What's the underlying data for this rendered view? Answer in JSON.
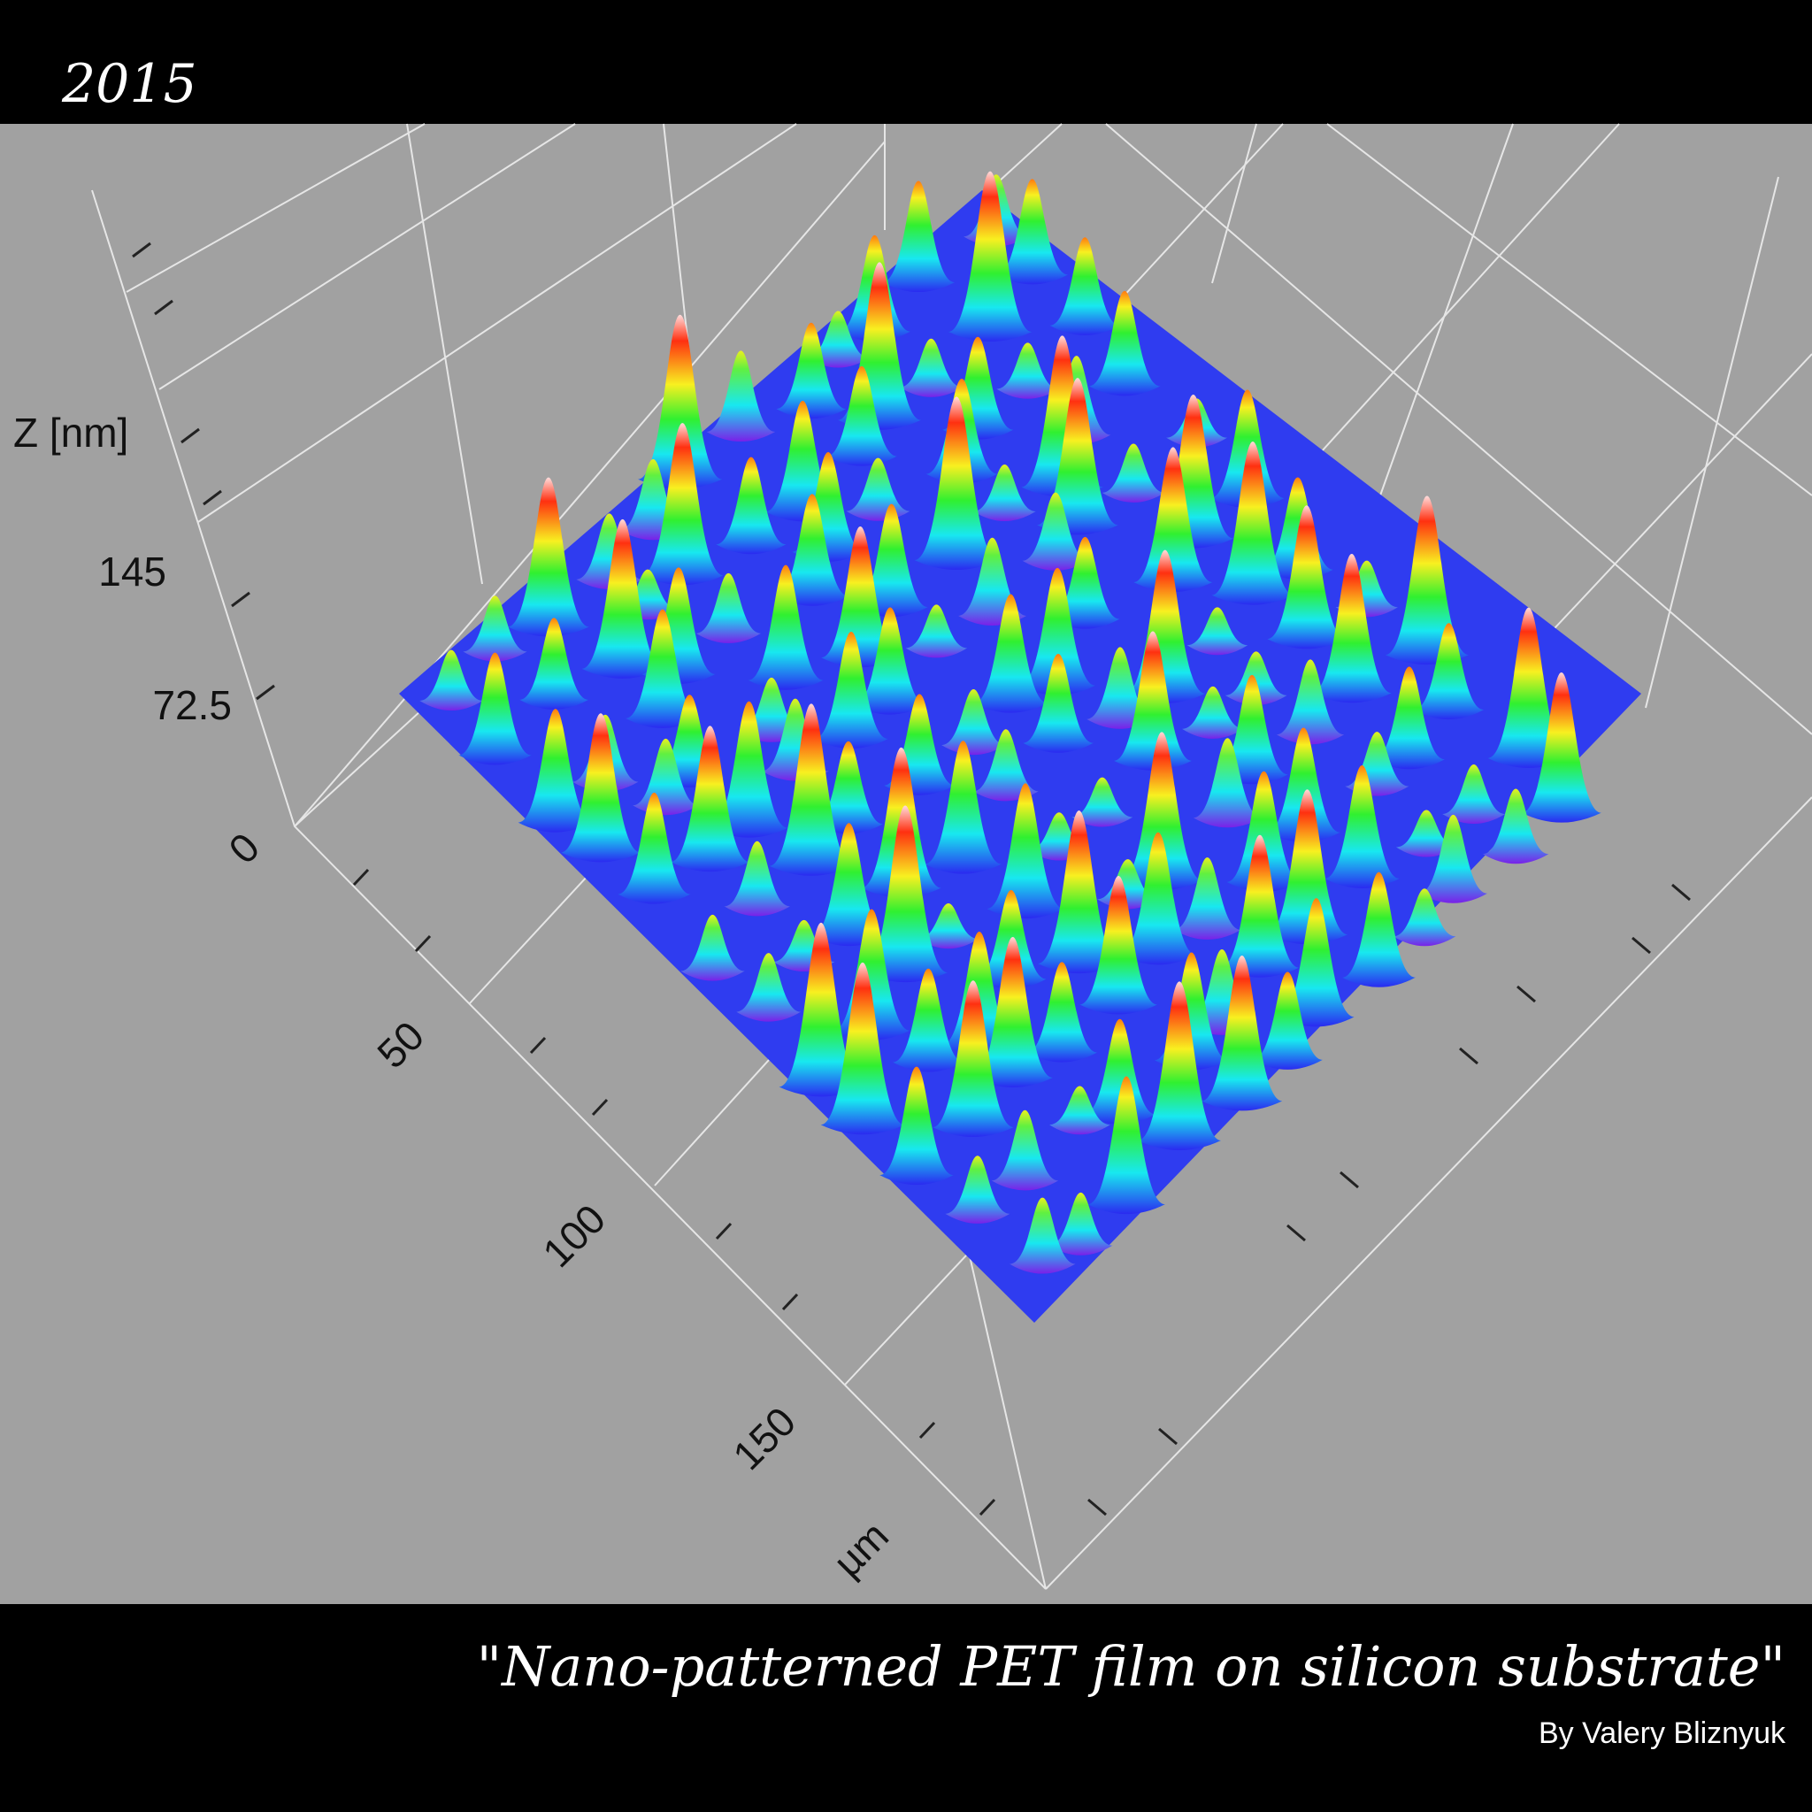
{
  "header": {
    "year": "2015"
  },
  "plot": {
    "z_label": "Z [nm]",
    "z_ticks": [
      "145",
      "72.5",
      "0"
    ],
    "xy_ticks": [
      "50",
      "100",
      "150"
    ],
    "xy_unit": "µm"
  },
  "caption": {
    "title": "\"Nano-patterned PET film on silicon substrate\"",
    "author": "By Valery Bliznyuk"
  }
}
